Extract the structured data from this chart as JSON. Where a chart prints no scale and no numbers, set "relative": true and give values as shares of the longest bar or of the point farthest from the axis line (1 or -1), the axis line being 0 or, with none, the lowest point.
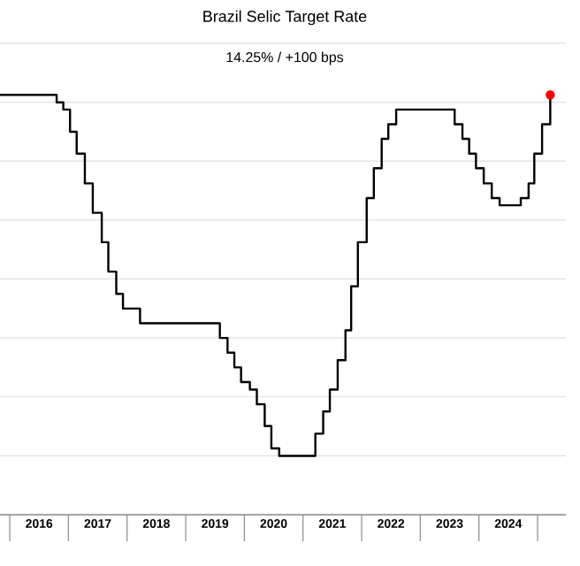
{
  "chart_data": {
    "type": "step",
    "title": "Brazil Selic Target Rate",
    "subtitle": "14.25%  /  +100 bps",
    "relative": true,
    "grid": "y",
    "xlim": [
      "2015-11-01",
      "2025-06-25"
    ],
    "xticks": [
      {
        "value": "2016-01-01",
        "label": null
      },
      {
        "value": "2016-07-01",
        "label": "2016"
      },
      {
        "value": "2017-01-01",
        "label": null
      },
      {
        "value": "2017-07-01",
        "label": "2017"
      },
      {
        "value": "2018-01-01",
        "label": null
      },
      {
        "value": "2018-07-01",
        "label": "2018"
      },
      {
        "value": "2019-01-01",
        "label": null
      },
      {
        "value": "2019-07-01",
        "label": "2019"
      },
      {
        "value": "2020-01-01",
        "label": null
      },
      {
        "value": "2020-07-01",
        "label": "2020"
      },
      {
        "value": "2021-01-01",
        "label": null
      },
      {
        "value": "2021-07-01",
        "label": "2021"
      },
      {
        "value": "2022-01-01",
        "label": null
      },
      {
        "value": "2022-07-01",
        "label": "2022"
      },
      {
        "value": "2023-01-01",
        "label": null
      },
      {
        "value": "2023-07-01",
        "label": "2023"
      },
      {
        "value": "2024-01-01",
        "label": null
      },
      {
        "value": "2024-07-01",
        "label": "2024"
      },
      {
        "value": "2025-01-01",
        "label": null
      }
    ],
    "series": [
      {
        "color": "#000000",
        "x": [
          "2015-11-01",
          "2016-10-19",
          "2016-11-30",
          "2017-01-11",
          "2017-02-22",
          "2017-04-12",
          "2017-05-31",
          "2017-07-26",
          "2017-09-06",
          "2017-10-25",
          "2017-12-06",
          "2018-03-21",
          "2019-07-31",
          "2019-09-18",
          "2019-10-30",
          "2019-12-11",
          "2020-02-05",
          "2020-03-18",
          "2020-05-06",
          "2020-06-17",
          "2020-08-05",
          "2021-03-17",
          "2021-05-05",
          "2021-06-16",
          "2021-08-04",
          "2021-09-22",
          "2021-10-27",
          "2021-12-08",
          "2022-02-02",
          "2022-03-16",
          "2022-05-04",
          "2022-06-15",
          "2022-08-03",
          "2023-08-02",
          "2023-09-20",
          "2023-11-01",
          "2023-12-13",
          "2024-01-31",
          "2024-03-20",
          "2024-05-08",
          "2024-09-18",
          "2024-11-06",
          "2024-12-11",
          "2025-01-29",
          "2025-03-19"
        ],
        "values": [
          1,
          0.982,
          0.965,
          0.912,
          0.86,
          0.789,
          0.719,
          0.649,
          0.579,
          0.526,
          0.491,
          0.456,
          0.421,
          0.386,
          0.351,
          0.316,
          0.298,
          0.263,
          0.211,
          0.158,
          0.14,
          0.193,
          0.246,
          0.298,
          0.368,
          0.439,
          0.544,
          0.649,
          0.754,
          0.825,
          0.895,
          0.93,
          0.965,
          0.93,
          0.895,
          0.86,
          0.825,
          0.789,
          0.754,
          0.737,
          0.754,
          0.789,
          0.86,
          0.93,
          1
        ]
      },
      {
        "type": "scatter",
        "color": "#ff0000",
        "marker": "circle",
        "x": [
          "2025-03-19"
        ],
        "values": [
          1
        ]
      }
    ]
  }
}
